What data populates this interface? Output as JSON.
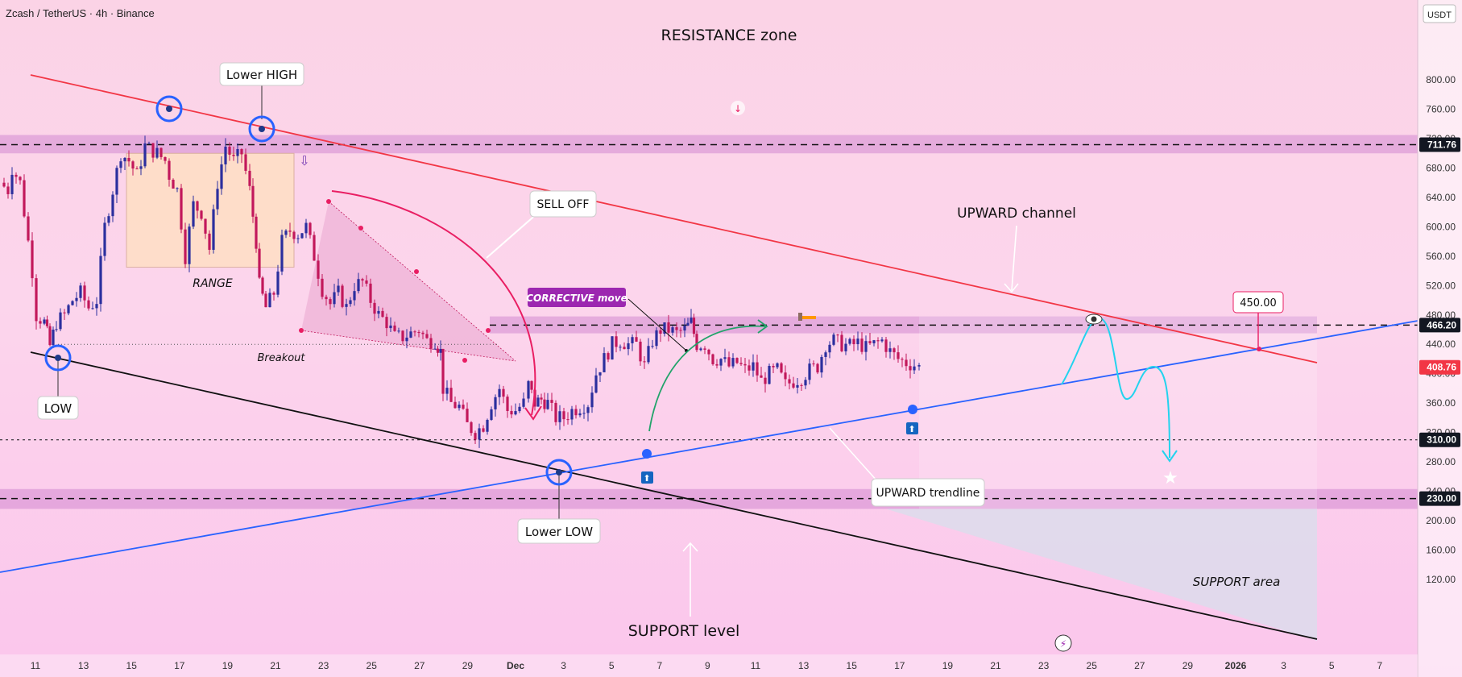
{
  "header": {
    "symbol_line": "Zcash / TetherUS · 4h · Binance",
    "currency": "USDT"
  },
  "colors": {
    "candle_up": "#2b2f9e",
    "candle_down": "#c2185b",
    "resistance_line": "#f23645",
    "support_line": "#111111",
    "trendline": "#2962ff",
    "zone_fill": "#c97bcd",
    "projection": "#22d3ee",
    "accent_magenta": "#e91e63",
    "price_tag_red": "#f23645"
  },
  "chart_data": {
    "type": "candlestick",
    "y_axis": {
      "range": [
        85,
        830
      ],
      "ticks": [
        120,
        160,
        200,
        240,
        280,
        320,
        360,
        400,
        440,
        480,
        520,
        560,
        600,
        640,
        680,
        720,
        760,
        800
      ]
    },
    "x_axis": {
      "tick_labels": [
        "11",
        "13",
        "15",
        "17",
        "19",
        "21",
        "23",
        "25",
        "27",
        "29",
        "Dec",
        "3",
        "5",
        "7",
        "9",
        "11",
        "13",
        "15",
        "17",
        "19",
        "21",
        "23",
        "25",
        "27",
        "29",
        "2026",
        "3",
        "5",
        "7"
      ]
    },
    "price_tags": [
      {
        "value": "711.76",
        "style": "dark"
      },
      {
        "value": "466.20",
        "style": "dark"
      },
      {
        "value": "408.76",
        "style": "red"
      },
      {
        "value": "310.00",
        "style": "dark"
      },
      {
        "value": "230.00",
        "style": "dark"
      }
    ],
    "horizontal_levels": [
      711.76,
      466.2,
      310,
      230
    ],
    "zones": [
      {
        "name": "resistance-zone",
        "from": 700,
        "to": 725
      },
      {
        "name": "middle-zone",
        "from": 455,
        "to": 478
      },
      {
        "name": "support-zone",
        "from": 216,
        "to": 243
      }
    ],
    "range_box": {
      "low": 545,
      "high": 700
    },
    "breakout_level": 440,
    "candle_path": [
      [
        0,
        660
      ],
      [
        10,
        650
      ],
      [
        15,
        680
      ],
      [
        25,
        660
      ],
      [
        30,
        620
      ],
      [
        40,
        540
      ],
      [
        45,
        480
      ],
      [
        55,
        470
      ],
      [
        62,
        438
      ],
      [
        70,
        470
      ],
      [
        80,
        480
      ],
      [
        90,
        500
      ],
      [
        100,
        510
      ],
      [
        110,
        490
      ],
      [
        120,
        500
      ],
      [
        130,
        600
      ],
      [
        140,
        650
      ],
      [
        150,
        700
      ],
      [
        160,
        690
      ],
      [
        170,
        670
      ],
      [
        180,
        710
      ],
      [
        195,
        700
      ],
      [
        205,
        690
      ],
      [
        210,
        670
      ],
      [
        220,
        650
      ],
      [
        230,
        560
      ],
      [
        240,
        630
      ],
      [
        250,
        620
      ],
      [
        260,
        570
      ],
      [
        270,
        660
      ],
      [
        280,
        710
      ],
      [
        290,
        690
      ],
      [
        300,
        700
      ],
      [
        310,
        650
      ],
      [
        318,
        580
      ],
      [
        322,
        520
      ],
      [
        330,
        490
      ],
      [
        340,
        510
      ],
      [
        350,
        580
      ],
      [
        360,
        595
      ],
      [
        370,
        590
      ],
      [
        380,
        600
      ],
      [
        390,
        560
      ],
      [
        400,
        515
      ],
      [
        410,
        495
      ],
      [
        420,
        510
      ],
      [
        430,
        490
      ],
      [
        440,
        520
      ],
      [
        450,
        525
      ],
      [
        460,
        500
      ],
      [
        470,
        480
      ],
      [
        480,
        470
      ],
      [
        490,
        450
      ],
      [
        500,
        450
      ],
      [
        510,
        455
      ],
      [
        520,
        460
      ],
      [
        530,
        445
      ],
      [
        540,
        445
      ],
      [
        547,
        430
      ],
      [
        550,
        380
      ],
      [
        560,
        360
      ],
      [
        570,
        355
      ],
      [
        580,
        330
      ],
      [
        590,
        320
      ],
      [
        600,
        330
      ],
      [
        610,
        360
      ],
      [
        620,
        380
      ],
      [
        630,
        350
      ],
      [
        640,
        350
      ],
      [
        650,
        360
      ],
      [
        656,
        385
      ],
      [
        664,
        360
      ],
      [
        672,
        365
      ],
      [
        680,
        360
      ],
      [
        690,
        340
      ],
      [
        700,
        340
      ],
      [
        710,
        350
      ],
      [
        720,
        355
      ],
      [
        730,
        360
      ],
      [
        740,
        400
      ],
      [
        750,
        420
      ],
      [
        760,
        440
      ],
      [
        770,
        445
      ],
      [
        780,
        440
      ],
      [
        790,
        440
      ],
      [
        800,
        410
      ],
      [
        810,
        445
      ],
      [
        820,
        460
      ],
      [
        830,
        460
      ],
      [
        840,
        455
      ],
      [
        850,
        460
      ],
      [
        858,
        470
      ],
      [
        865,
        440
      ],
      [
        875,
        440
      ],
      [
        885,
        420
      ],
      [
        895,
        420
      ],
      [
        905,
        410
      ],
      [
        915,
        415
      ],
      [
        925,
        405
      ],
      [
        935,
        410
      ],
      [
        945,
        390
      ],
      [
        955,
        400
      ],
      [
        965,
        405
      ],
      [
        975,
        385
      ],
      [
        985,
        390
      ],
      [
        995,
        395
      ],
      [
        1005,
        405
      ],
      [
        1015,
        410
      ],
      [
        1025,
        440
      ],
      [
        1035,
        445
      ],
      [
        1045,
        440
      ],
      [
        1055,
        438
      ],
      [
        1065,
        442
      ],
      [
        1075,
        435
      ],
      [
        1085,
        440
      ],
      [
        1095,
        445
      ],
      [
        1105,
        430
      ],
      [
        1115,
        420
      ],
      [
        1125,
        415
      ],
      [
        1135,
        412
      ],
      [
        1141,
        409
      ]
    ],
    "annotations": {
      "title": "RESISTANCE zone",
      "lower_high": "Lower HIGH",
      "range": "RANGE",
      "breakout": "Breakout",
      "low": "LOW",
      "sell_off": "SELL OFF",
      "corrective_move": "CORRECTIVE move",
      "upward_channel": "UPWARD channel",
      "price_450": "450.00",
      "upward_trendline": "UPWARD trendline",
      "lower_low": "Lower LOW",
      "support_level": "SUPPORT level",
      "support_area": "SUPPORT area"
    }
  }
}
